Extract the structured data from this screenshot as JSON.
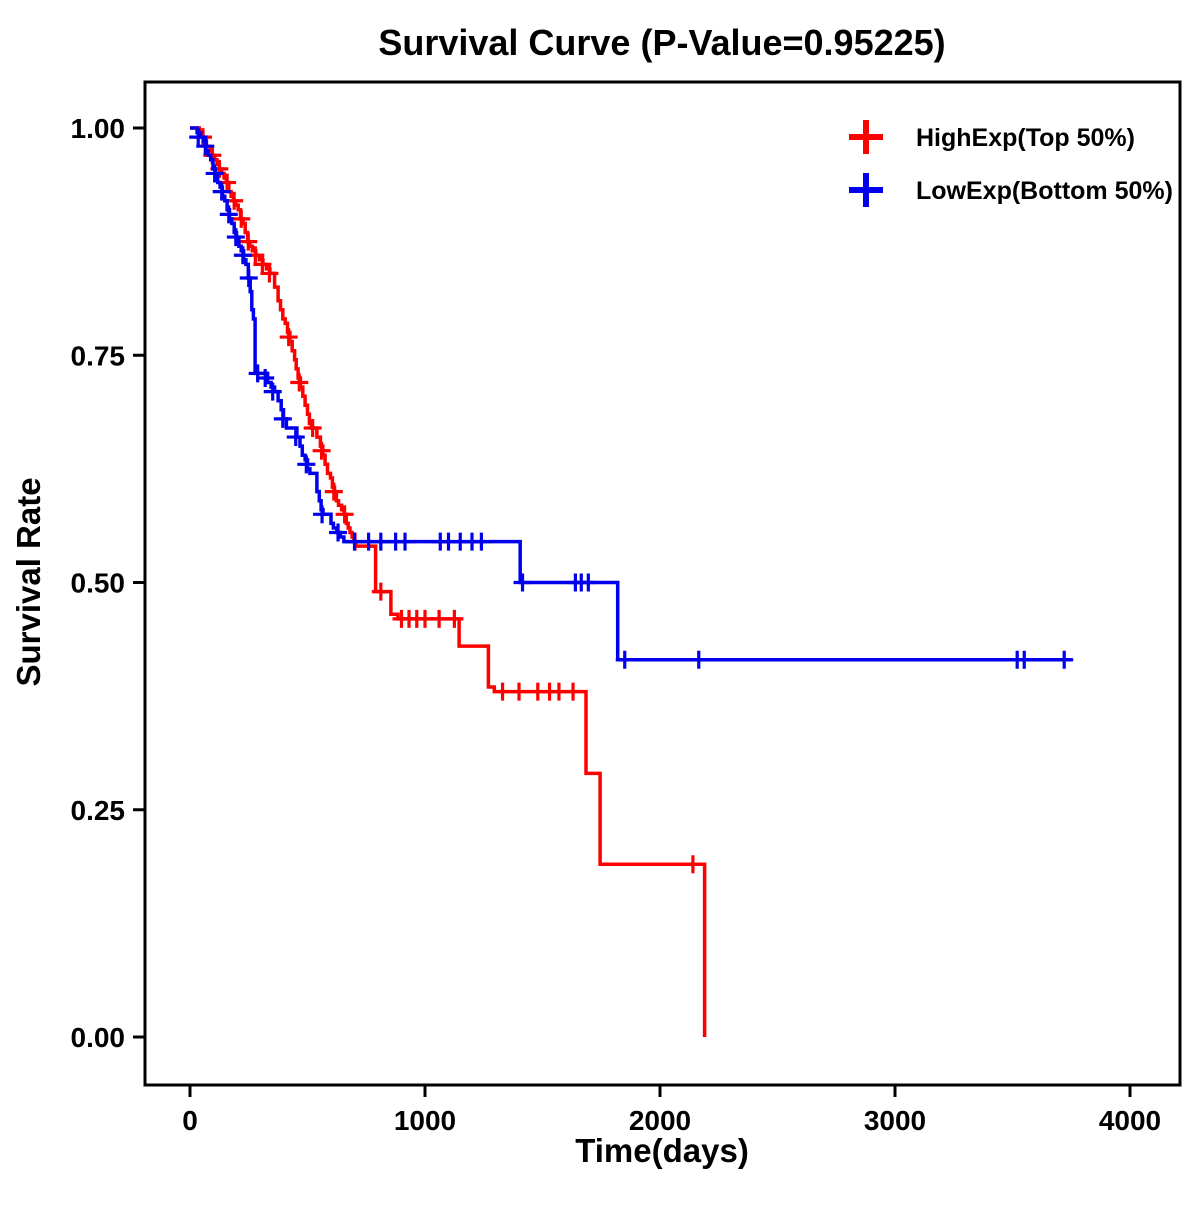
{
  "title": "Survival Curve (P-Value=0.95225)",
  "chart_data": {
    "type": "line",
    "subtype": "kaplan-meier-step",
    "title": "Survival Curve (P-Value=0.95225)",
    "xlabel": "Time(days)",
    "ylabel": "Survival Rate",
    "xlim": [
      0,
      4000
    ],
    "ylim": [
      0.0,
      1.0
    ],
    "x_ticks": [
      0,
      1000,
      2000,
      3000,
      4000
    ],
    "y_ticks": [
      {
        "value": 0.0,
        "label": "0.00"
      },
      {
        "value": 0.25,
        "label": "0.25"
      },
      {
        "value": 0.5,
        "label": "0.50"
      },
      {
        "value": 0.75,
        "label": "0.75"
      },
      {
        "value": 1.0,
        "label": "1.00"
      }
    ],
    "grid": false,
    "legend_position": "top-right",
    "series": [
      {
        "name": "HighExp(Top 50%)",
        "color": "#FF0000",
        "steps": [
          [
            0,
            1.0
          ],
          [
            40,
            0.995
          ],
          [
            55,
            0.99
          ],
          [
            70,
            0.98
          ],
          [
            85,
            0.975
          ],
          [
            95,
            0.97
          ],
          [
            105,
            0.965
          ],
          [
            115,
            0.96
          ],
          [
            125,
            0.955
          ],
          [
            135,
            0.95
          ],
          [
            145,
            0.945
          ],
          [
            155,
            0.94
          ],
          [
            165,
            0.93
          ],
          [
            175,
            0.925
          ],
          [
            185,
            0.92
          ],
          [
            195,
            0.915
          ],
          [
            205,
            0.91
          ],
          [
            215,
            0.9
          ],
          [
            225,
            0.895
          ],
          [
            235,
            0.885
          ],
          [
            245,
            0.875
          ],
          [
            255,
            0.87
          ],
          [
            265,
            0.865
          ],
          [
            280,
            0.86
          ],
          [
            295,
            0.855
          ],
          [
            310,
            0.85
          ],
          [
            325,
            0.845
          ],
          [
            340,
            0.84
          ],
          [
            360,
            0.825
          ],
          [
            375,
            0.81
          ],
          [
            385,
            0.8
          ],
          [
            395,
            0.79
          ],
          [
            405,
            0.785
          ],
          [
            415,
            0.775
          ],
          [
            425,
            0.765
          ],
          [
            435,
            0.755
          ],
          [
            445,
            0.745
          ],
          [
            452,
            0.735
          ],
          [
            460,
            0.725
          ],
          [
            470,
            0.715
          ],
          [
            480,
            0.705
          ],
          [
            490,
            0.695
          ],
          [
            500,
            0.685
          ],
          [
            508,
            0.675
          ],
          [
            516,
            0.67
          ],
          [
            540,
            0.66
          ],
          [
            555,
            0.65
          ],
          [
            565,
            0.64
          ],
          [
            575,
            0.63
          ],
          [
            585,
            0.62
          ],
          [
            598,
            0.615
          ],
          [
            606,
            0.605
          ],
          [
            615,
            0.6
          ],
          [
            623,
            0.59
          ],
          [
            632,
            0.585
          ],
          [
            645,
            0.58
          ],
          [
            655,
            0.575
          ],
          [
            665,
            0.565
          ],
          [
            673,
            0.56
          ],
          [
            681,
            0.555
          ],
          [
            690,
            0.55
          ],
          [
            698,
            0.545
          ],
          [
            706,
            0.54
          ],
          [
            790,
            0.49
          ],
          [
            855,
            0.465
          ],
          [
            885,
            0.46
          ],
          [
            1145,
            0.43
          ],
          [
            1270,
            0.385
          ],
          [
            1295,
            0.38
          ],
          [
            1685,
            0.29
          ],
          [
            1745,
            0.19
          ],
          [
            2190,
            0.0
          ]
        ],
        "censors": [
          [
            55,
            0.99
          ],
          [
            95,
            0.97
          ],
          [
            125,
            0.955
          ],
          [
            158,
            0.94
          ],
          [
            188,
            0.92
          ],
          [
            218,
            0.9
          ],
          [
            248,
            0.875
          ],
          [
            278,
            0.86
          ],
          [
            308,
            0.85
          ],
          [
            338,
            0.84
          ],
          [
            420,
            0.77
          ],
          [
            465,
            0.72
          ],
          [
            522,
            0.67
          ],
          [
            560,
            0.645
          ],
          [
            612,
            0.6
          ],
          [
            658,
            0.575
          ],
          [
            702,
            0.545
          ],
          [
            812,
            0.49
          ],
          [
            900,
            0.46
          ],
          [
            932,
            0.46
          ],
          [
            965,
            0.46
          ],
          [
            1000,
            0.46
          ],
          [
            1060,
            0.46
          ],
          [
            1125,
            0.46
          ],
          [
            1330,
            0.38
          ],
          [
            1400,
            0.38
          ],
          [
            1480,
            0.38
          ],
          [
            1530,
            0.38
          ],
          [
            1570,
            0.38
          ],
          [
            1630,
            0.38
          ],
          [
            2140,
            0.19
          ]
        ]
      },
      {
        "name": "LowExp(Bottom 50%)",
        "color": "#0000EE",
        "steps": [
          [
            0,
            1.0
          ],
          [
            30,
            0.995
          ],
          [
            45,
            0.99
          ],
          [
            58,
            0.985
          ],
          [
            68,
            0.975
          ],
          [
            78,
            0.97
          ],
          [
            88,
            0.965
          ],
          [
            98,
            0.955
          ],
          [
            108,
            0.95
          ],
          [
            118,
            0.94
          ],
          [
            128,
            0.935
          ],
          [
            138,
            0.925
          ],
          [
            148,
            0.92
          ],
          [
            158,
            0.91
          ],
          [
            168,
            0.9
          ],
          [
            178,
            0.895
          ],
          [
            188,
            0.885
          ],
          [
            198,
            0.88
          ],
          [
            208,
            0.87
          ],
          [
            218,
            0.865
          ],
          [
            228,
            0.855
          ],
          [
            238,
            0.85
          ],
          [
            248,
            0.835
          ],
          [
            256,
            0.82
          ],
          [
            263,
            0.8
          ],
          [
            270,
            0.79
          ],
          [
            277,
            0.73
          ],
          [
            330,
            0.72
          ],
          [
            345,
            0.715
          ],
          [
            360,
            0.71
          ],
          [
            375,
            0.7
          ],
          [
            388,
            0.69
          ],
          [
            398,
            0.68
          ],
          [
            410,
            0.67
          ],
          [
            455,
            0.66
          ],
          [
            468,
            0.65
          ],
          [
            478,
            0.64
          ],
          [
            490,
            0.635
          ],
          [
            500,
            0.625
          ],
          [
            510,
            0.62
          ],
          [
            540,
            0.6
          ],
          [
            550,
            0.59
          ],
          [
            558,
            0.58
          ],
          [
            566,
            0.575
          ],
          [
            600,
            0.565
          ],
          [
            610,
            0.56
          ],
          [
            625,
            0.555
          ],
          [
            640,
            0.55
          ],
          [
            655,
            0.545
          ],
          [
            1405,
            0.5
          ],
          [
            1820,
            0.415
          ],
          [
            3750,
            0.415
          ]
        ],
        "censors": [
          [
            35,
            0.99
          ],
          [
            65,
            0.98
          ],
          [
            105,
            0.95
          ],
          [
            135,
            0.93
          ],
          [
            165,
            0.905
          ],
          [
            195,
            0.88
          ],
          [
            225,
            0.86
          ],
          [
            250,
            0.835
          ],
          [
            288,
            0.73
          ],
          [
            320,
            0.725
          ],
          [
            352,
            0.71
          ],
          [
            395,
            0.68
          ],
          [
            450,
            0.66
          ],
          [
            495,
            0.63
          ],
          [
            562,
            0.575
          ],
          [
            630,
            0.555
          ],
          [
            700,
            0.545
          ],
          [
            760,
            0.545
          ],
          [
            812,
            0.545
          ],
          [
            875,
            0.545
          ],
          [
            915,
            0.545
          ],
          [
            1065,
            0.545
          ],
          [
            1100,
            0.545
          ],
          [
            1150,
            0.545
          ],
          [
            1200,
            0.545
          ],
          [
            1240,
            0.545
          ],
          [
            1415,
            0.5
          ],
          [
            1640,
            0.5
          ],
          [
            1665,
            0.5
          ],
          [
            1695,
            0.5
          ],
          [
            1850,
            0.415
          ],
          [
            2165,
            0.415
          ],
          [
            3520,
            0.415
          ],
          [
            3550,
            0.415
          ],
          [
            3720,
            0.415
          ]
        ]
      }
    ]
  }
}
